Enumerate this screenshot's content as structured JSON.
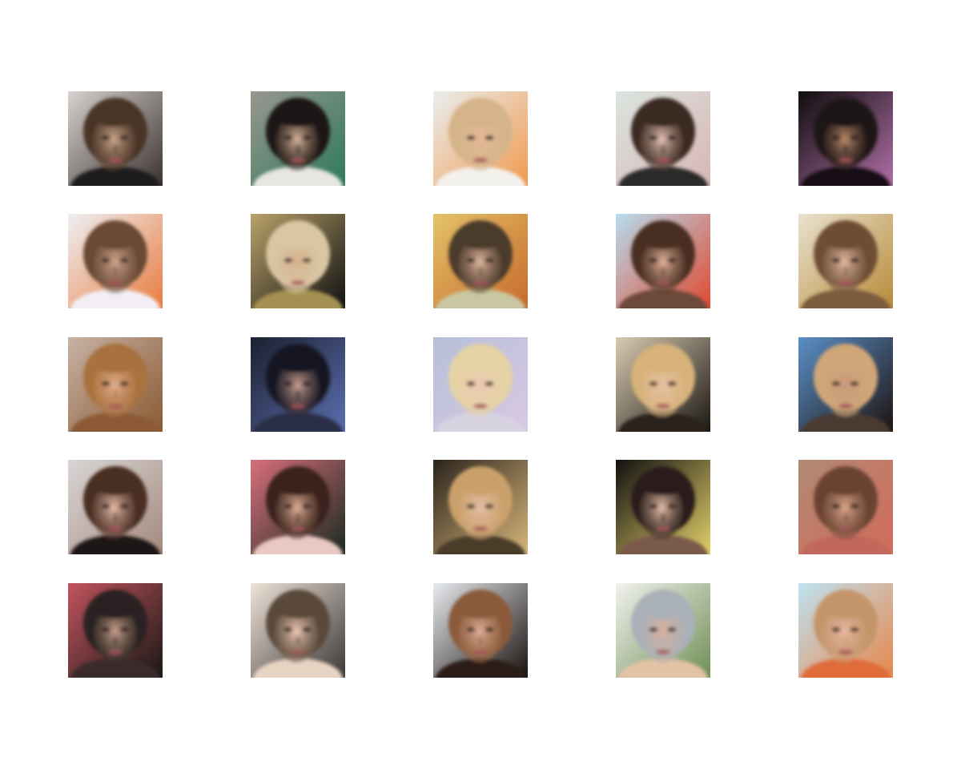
{
  "figure": {
    "rows": 5,
    "columns": 5,
    "samples": [
      {
        "row": 1,
        "col": 1,
        "bg": "#d7d2cf",
        "bg2": "#3b3330",
        "hair": "#4a3426",
        "skin": "#caa58a",
        "cloth": "#1d1b1c"
      },
      {
        "row": 1,
        "col": 2,
        "bg": "#9a9690",
        "bg2": "#2d7a5a",
        "hair": "#1e1713",
        "skin": "#d9b59c",
        "cloth": "#e7e6e1"
      },
      {
        "row": 1,
        "col": 3,
        "bg": "#e9eeef",
        "bg2": "#f19a4e",
        "hair": "#d6b489",
        "skin": "#e4b89a",
        "cloth": "#f3f1ee"
      },
      {
        "row": 1,
        "col": 4,
        "bg": "#dbe4df",
        "bg2": "#d8b6b6",
        "hair": "#3b2a22",
        "skin": "#e6c3b3",
        "cloth": "#2b2a2c"
      },
      {
        "row": 1,
        "col": 5,
        "bg": "#0f0d0e",
        "bg2": "#b070a6",
        "hair": "#1a1214",
        "skin": "#b98a6a",
        "cloth": "#151012"
      },
      {
        "row": 2,
        "col": 1,
        "bg": "#eef0f4",
        "bg2": "#e97b3f",
        "hair": "#6b4a35",
        "skin": "#cfa48e",
        "cloth": "#f2eef3"
      },
      {
        "row": 2,
        "col": 2,
        "bg": "#b9a26a",
        "bg2": "#111111",
        "hair": "#d9c6a3",
        "skin": "#d7b08d",
        "cloth": "#a49151"
      },
      {
        "row": 2,
        "col": 3,
        "bg": "#e3c26a",
        "bg2": "#c86a2a",
        "hair": "#4b3a2a",
        "skin": "#e2b79e",
        "cloth": "#c9c7a2"
      },
      {
        "row": 2,
        "col": 4,
        "bg": "#b7dcef",
        "bg2": "#e0492f",
        "hair": "#4a2f22",
        "skin": "#e3b39a",
        "cloth": "#6d4a3a"
      },
      {
        "row": 2,
        "col": 5,
        "bg": "#e8e2d0",
        "bg2": "#b88a38",
        "hair": "#6e4e34",
        "skin": "#e2bba2",
        "cloth": "#7d5c3e"
      },
      {
        "row": 3,
        "col": 1,
        "bg": "#c7b2a5",
        "bg2": "#8a5a32",
        "hair": "#a8713d",
        "skin": "#e0ad8d",
        "cloth": "#8b5a36"
      },
      {
        "row": 3,
        "col": 2,
        "bg": "#1b1f2e",
        "bg2": "#5a6fb0",
        "hair": "#161622",
        "skin": "#c79d90",
        "cloth": "#2a2f47"
      },
      {
        "row": 3,
        "col": 3,
        "bg": "#b6bfd9",
        "bg2": "#d9c8e3",
        "hair": "#e5d3a5",
        "skin": "#ecc7b3",
        "cloth": "#d7d3e1"
      },
      {
        "row": 3,
        "col": 4,
        "bg": "#d9cbb1",
        "bg2": "#1b1714",
        "hair": "#d7b27a",
        "skin": "#e7c2a6",
        "cloth": "#2b231d"
      },
      {
        "row": 3,
        "col": 5,
        "bg": "#5a8fc6",
        "bg2": "#1e1412",
        "hair": "#cfa677",
        "skin": "#c79a7c",
        "cloth": "#4a3a33"
      },
      {
        "row": 4,
        "col": 1,
        "bg": "#d9d6d6",
        "bg2": "#a48a7e",
        "hair": "#4a2d22",
        "skin": "#e6bba7",
        "cloth": "#1f1716"
      },
      {
        "row": 4,
        "col": 2,
        "bg": "#d86f7c",
        "bg2": "#1b2a20",
        "hair": "#3a231b",
        "skin": "#e2b19a",
        "cloth": "#e9c9c1"
      },
      {
        "row": 4,
        "col": 3,
        "bg": "#2a231a",
        "bg2": "#d8b67c",
        "hair": "#caa06a",
        "skin": "#e4bfa8",
        "cloth": "#4a3d2a"
      },
      {
        "row": 4,
        "col": 4,
        "bg": "#111010",
        "bg2": "#e3d06a",
        "hair": "#2c1f1a",
        "skin": "#e8c0aa",
        "cloth": "#7a5a4a"
      },
      {
        "row": 4,
        "col": 5,
        "bg": "#b08a74",
        "bg2": "#d46a5a",
        "hair": "#6a4330",
        "skin": "#dba68c",
        "cloth": "#c1685a"
      },
      {
        "row": 5,
        "col": 1,
        "bg": "#c2545e",
        "bg2": "#1a1816",
        "hair": "#2a2420",
        "skin": "#c9a08a",
        "cloth": "#3a2a2a"
      },
      {
        "row": 5,
        "col": 2,
        "bg": "#efe3d8",
        "bg2": "#3c3838",
        "hair": "#5a4a3a",
        "skin": "#efc9b5",
        "cloth": "#e8d4c3"
      },
      {
        "row": 5,
        "col": 3,
        "bg": "#e9ecef",
        "bg2": "#1a1210",
        "hair": "#8a5a3a",
        "skin": "#dfae98",
        "cloth": "#2a1a14"
      },
      {
        "row": 5,
        "col": 4,
        "bg": "#f2f2ee",
        "bg2": "#6f8f55",
        "hair": "#aab0b8",
        "skin": "#d9b19b",
        "cloth": "#e4c2a4"
      },
      {
        "row": 5,
        "col": 5,
        "bg": "#bfe2f2",
        "bg2": "#e6874a",
        "hair": "#c5956a",
        "skin": "#e5b7a1",
        "cloth": "#e06c3a"
      }
    ]
  }
}
